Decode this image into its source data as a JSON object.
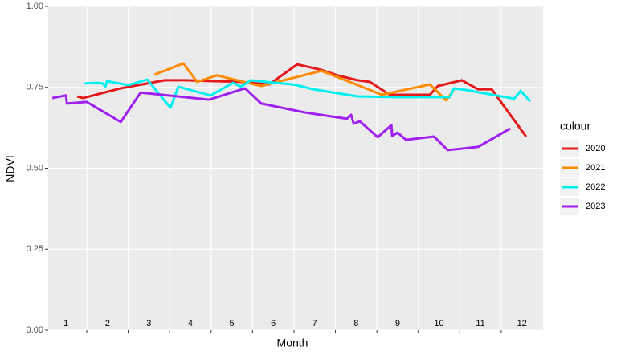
{
  "chart_data": {
    "type": "line",
    "x_label": "Month",
    "y_label": "NDVI",
    "legend_title": "colour",
    "legend_position": "right",
    "background": "#ebebeb",
    "grid": true,
    "xlim": [
      0.57,
      12.51
    ],
    "xticks": [
      1.5,
      2.5,
      3.5,
      4.5,
      5.5,
      6.5,
      7.5,
      8.5,
      9.5,
      10.5,
      11.5
    ],
    "ylim": [
      0,
      1
    ],
    "yticks": [
      {
        "value": 0,
        "label": "0.00"
      },
      {
        "value": 0.25,
        "label": "0.25"
      },
      {
        "value": 0.5,
        "label": "0.50"
      },
      {
        "value": 0.75,
        "label": "0.75"
      },
      {
        "value": 1,
        "label": "1.00"
      }
    ],
    "annotations": [
      {
        "x": 1,
        "y": 0.02,
        "text": "1"
      },
      {
        "x": 2,
        "y": 0.02,
        "text": "2"
      },
      {
        "x": 3,
        "y": 0.02,
        "text": "3"
      },
      {
        "x": 4,
        "y": 0.02,
        "text": "4"
      },
      {
        "x": 5,
        "y": 0.02,
        "text": "5"
      },
      {
        "x": 6,
        "y": 0.02,
        "text": "6"
      },
      {
        "x": 7,
        "y": 0.02,
        "text": "7"
      },
      {
        "x": 8,
        "y": 0.02,
        "text": "8"
      },
      {
        "x": 9,
        "y": 0.02,
        "text": "9"
      },
      {
        "x": 10,
        "y": 0.02,
        "text": "10"
      },
      {
        "x": 11,
        "y": 0.02,
        "text": "11"
      },
      {
        "x": 12,
        "y": 0.02,
        "text": "12"
      }
    ],
    "series": [
      {
        "name": "2020",
        "color": "#e41a1c",
        "x": [
          1.27,
          1.41,
          2.32,
          3.38,
          3.87,
          5.22,
          5.9,
          6.58,
          7.16,
          7.55,
          8.03,
          8.33,
          8.81,
          9.78,
          9.97,
          10.55,
          10.94,
          11.27,
          12.1
        ],
        "values": [
          0.722,
          0.717,
          0.747,
          0.772,
          0.772,
          0.767,
          0.759,
          0.821,
          0.804,
          0.787,
          0.772,
          0.767,
          0.727,
          0.727,
          0.754,
          0.772,
          0.744,
          0.744,
          0.598
        ]
      },
      {
        "name": "2021",
        "color": "#ff8c00",
        "x": [
          3.13,
          3.83,
          4.16,
          4.64,
          5.22,
          5.71,
          6.1,
          7.16,
          7.94,
          8.62,
          9.78,
          10.17,
          10.36
        ],
        "values": [
          0.789,
          0.824,
          0.767,
          0.787,
          0.769,
          0.754,
          0.767,
          0.801,
          0.762,
          0.727,
          0.759,
          0.71,
          0.742
        ]
      },
      {
        "name": "2022",
        "color": "#00f0f0",
        "x": [
          1.45,
          1.74,
          1.89,
          1.95,
          1.99,
          2.51,
          2.96,
          3.52,
          3.71,
          4.49,
          5.03,
          5.22,
          5.46,
          5.81,
          6.48,
          6.97,
          7.55,
          8.03,
          8.91,
          9.68,
          10.26,
          10.36,
          10.65,
          11.81,
          11.97,
          12.2
        ],
        "values": [
          0.762,
          0.764,
          0.762,
          0.752,
          0.769,
          0.757,
          0.774,
          0.687,
          0.752,
          0.725,
          0.764,
          0.752,
          0.772,
          0.767,
          0.759,
          0.744,
          0.732,
          0.722,
          0.72,
          0.72,
          0.72,
          0.747,
          0.742,
          0.715,
          0.739,
          0.707
        ]
      },
      {
        "name": "2023",
        "color": "#a020f0",
        "x": [
          0.67,
          1.0,
          1.02,
          1.5,
          2.32,
          2.8,
          4.45,
          5.32,
          5.71,
          6.78,
          7.78,
          7.88,
          7.94,
          8.09,
          8.52,
          8.85,
          8.87,
          9.0,
          9.2,
          9.88,
          10.21,
          10.94,
          11.72
        ],
        "values": [
          0.717,
          0.725,
          0.7,
          0.705,
          0.643,
          0.734,
          0.712,
          0.747,
          0.7,
          0.672,
          0.653,
          0.665,
          0.638,
          0.645,
          0.596,
          0.633,
          0.6,
          0.61,
          0.588,
          0.598,
          0.556,
          0.566,
          0.623
        ]
      }
    ]
  }
}
